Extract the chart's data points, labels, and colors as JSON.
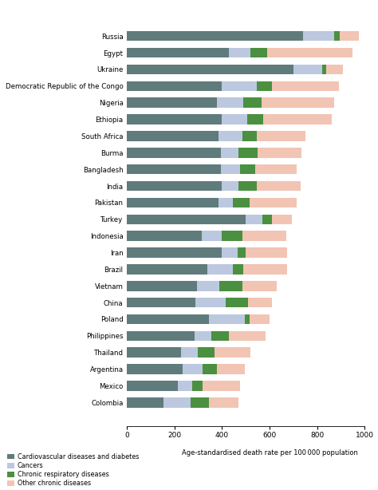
{
  "countries": [
    "Russia",
    "Egypt",
    "Ukraine",
    "Democratic Republic of the Congo",
    "Nigeria",
    "Ethiopia",
    "South Africa",
    "Burma",
    "Bangladesh",
    "India",
    "Pakistan",
    "Turkey",
    "Indonesia",
    "Iran",
    "Brazil",
    "Vietnam",
    "China",
    "Poland",
    "Philippines",
    "Thailand",
    "Argentina",
    "Mexico",
    "Colombia"
  ],
  "cardiovascular": [
    740,
    430,
    700,
    400,
    380,
    400,
    385,
    395,
    395,
    400,
    385,
    500,
    315,
    400,
    340,
    295,
    290,
    345,
    285,
    230,
    235,
    215,
    155
  ],
  "cancers": [
    130,
    90,
    120,
    145,
    110,
    105,
    100,
    75,
    80,
    70,
    60,
    70,
    85,
    65,
    105,
    95,
    125,
    150,
    70,
    70,
    85,
    60,
    115
  ],
  "respiratory": [
    25,
    70,
    18,
    65,
    75,
    70,
    60,
    80,
    65,
    75,
    70,
    40,
    85,
    35,
    45,
    95,
    95,
    20,
    75,
    70,
    60,
    45,
    75
  ],
  "other": [
    80,
    360,
    70,
    280,
    305,
    285,
    205,
    185,
    175,
    185,
    200,
    85,
    185,
    175,
    185,
    145,
    100,
    85,
    155,
    150,
    115,
    155,
    125
  ],
  "colors": {
    "cardiovascular": "#607b7b",
    "cancers": "#bcc8df",
    "respiratory": "#4a9040",
    "other": "#f2c4b4"
  },
  "xlim": [
    0,
    1000
  ],
  "xticks": [
    0,
    200,
    400,
    600,
    800,
    1000
  ],
  "xlabel": "Age-standardised death rate per 100 000 population",
  "legend_labels": [
    "Cardiovascular diseases and diabetes",
    "Cancers",
    "Chronic respiratory diseases",
    "Other chronic diseases"
  ],
  "background_color": "#ffffff",
  "bar_height": 0.6
}
